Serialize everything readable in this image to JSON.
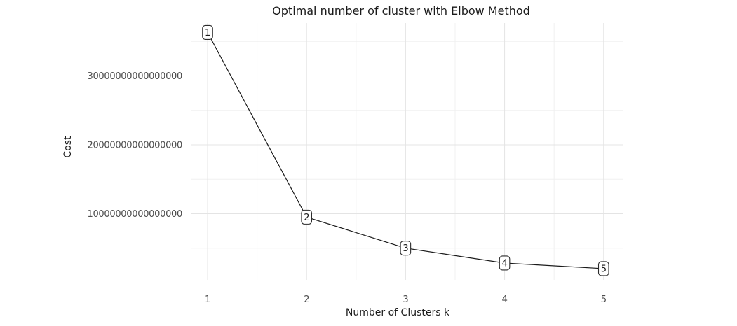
{
  "chart_data": {
    "type": "line",
    "title": "Optimal number of cluster with Elbow Method",
    "xlabel": "Number of Clusters k",
    "ylabel": "Cost",
    "x": [
      1,
      2,
      3,
      4,
      5
    ],
    "values": [
      36300000000000000,
      9500000000000000,
      5000000000000000,
      2840000000000000,
      2030000000000000
    ],
    "point_labels": [
      "1",
      "2",
      "3",
      "4",
      "5"
    ],
    "x_ticks": [
      1,
      2,
      3,
      4,
      5
    ],
    "x_tick_labels": [
      "1",
      "2",
      "3",
      "4",
      "5"
    ],
    "x_minor_ticks": [
      1.5,
      2.5,
      3.5,
      4.5
    ],
    "y_ticks": [
      10000000000000000,
      20000000000000000,
      30000000000000000
    ],
    "y_tick_labels": [
      "10000000000000000",
      "20000000000000000",
      "30000000000000000"
    ],
    "y_minor_ticks": [
      5000000000000000,
      15000000000000000,
      25000000000000000,
      35000000000000000
    ],
    "xlim": [
      0.83,
      5.2
    ],
    "ylim": [
      400000000000000,
      37660000000000000
    ],
    "grid": true,
    "legend": false,
    "colors": {
      "background": "#ffffff",
      "line": "#1a1a1a",
      "grid_major": "#e4e4e4",
      "grid_minor": "#f0f0f0",
      "tick_label": "#4d4d4d",
      "text": "#1a1a1a",
      "label_box_bg": "#ffffff",
      "label_box_border": "#2a2a2a"
    }
  }
}
